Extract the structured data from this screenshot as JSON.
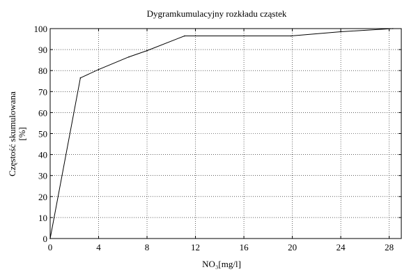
{
  "chart_data": {
    "type": "line",
    "title": "Dygramkumulacyjny rozkładu cząstek",
    "xlabel": "NO₃[mg/l]",
    "ylabel_lines": [
      "Częstość skumulowana",
      "[%]"
    ],
    "xlim": [
      0,
      29
    ],
    "ylim": [
      0,
      100
    ],
    "xticks": [
      0,
      4,
      8,
      12,
      16,
      20,
      24,
      28
    ],
    "yticks": [
      0,
      10,
      20,
      30,
      40,
      50,
      60,
      70,
      80,
      90,
      100
    ],
    "grid": true,
    "series": [
      {
        "x": [
          0,
          2.5,
          4,
          6.5,
          8,
          11.1,
          19.9,
          24,
          28.3
        ],
        "y": [
          0,
          76.5,
          80.5,
          86.5,
          89.5,
          96.5,
          96.5,
          98.5,
          100
        ],
        "color": "#000000"
      }
    ]
  }
}
